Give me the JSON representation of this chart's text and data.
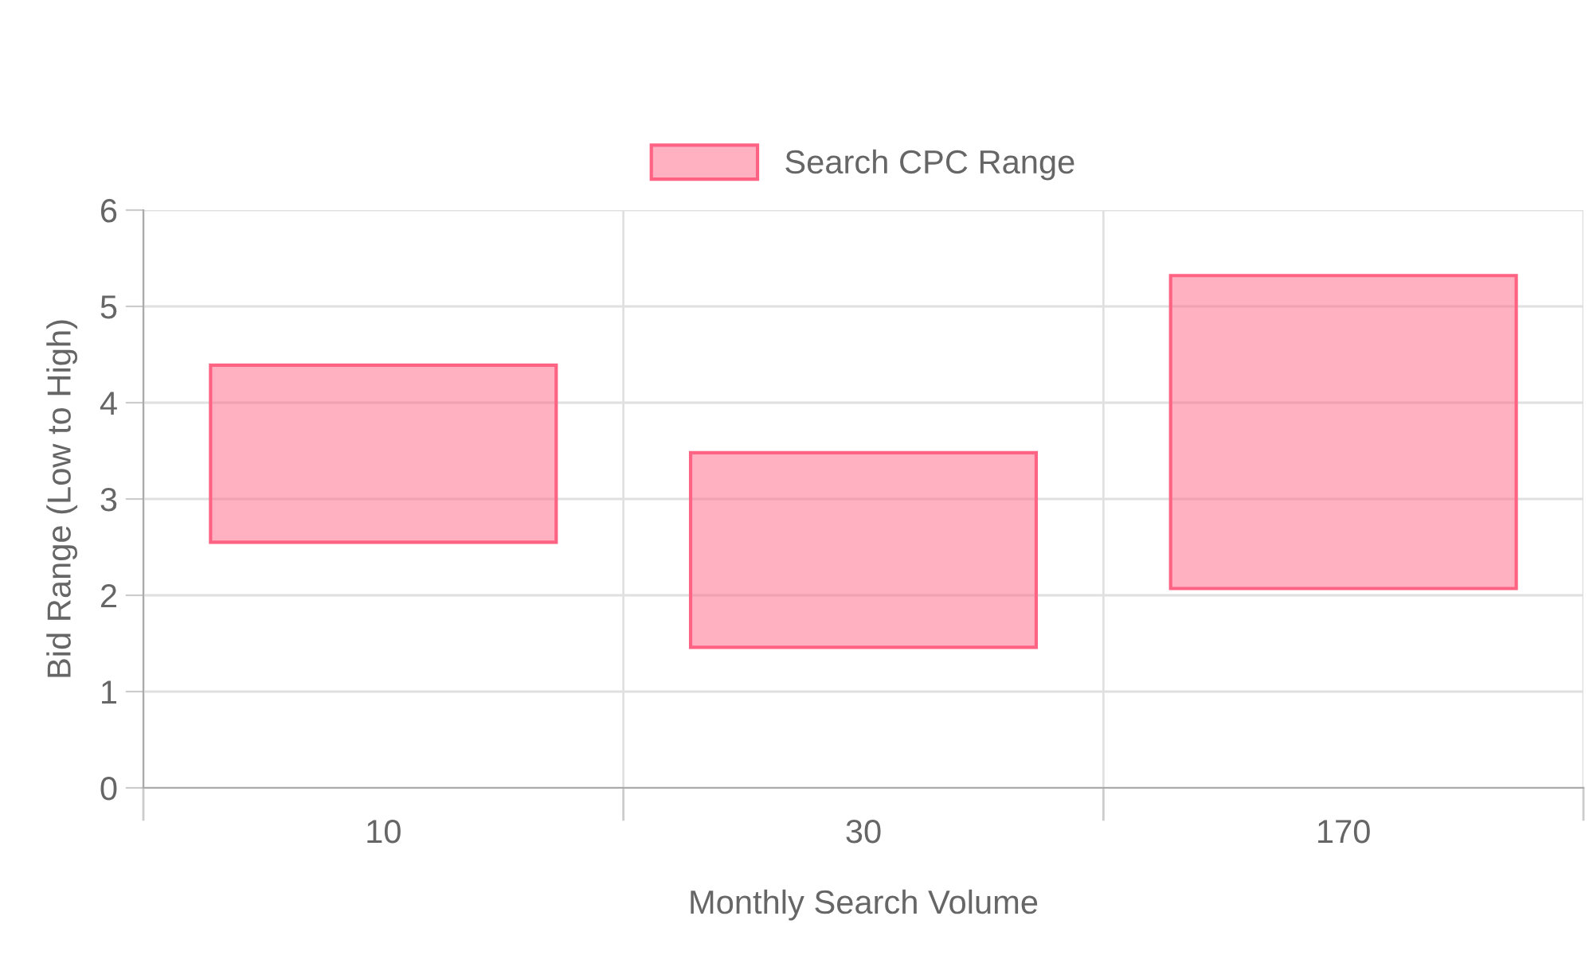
{
  "chart_data": {
    "type": "bar",
    "xlabel": "Monthly Search Volume",
    "ylabel": "Bid Range (Low to High)",
    "categories": [
      "10",
      "30",
      "170"
    ],
    "series": [
      {
        "name": "Search CPC Range",
        "color": "#ff6384",
        "base": [
          2.55,
          1.46,
          2.07
        ],
        "values": [
          1.84,
          2.02,
          3.25
        ]
      }
    ],
    "ylim": [
      0,
      6
    ],
    "yticks": [
      0,
      1,
      2,
      3,
      4,
      5,
      6
    ],
    "grid": true,
    "legend": "top"
  }
}
